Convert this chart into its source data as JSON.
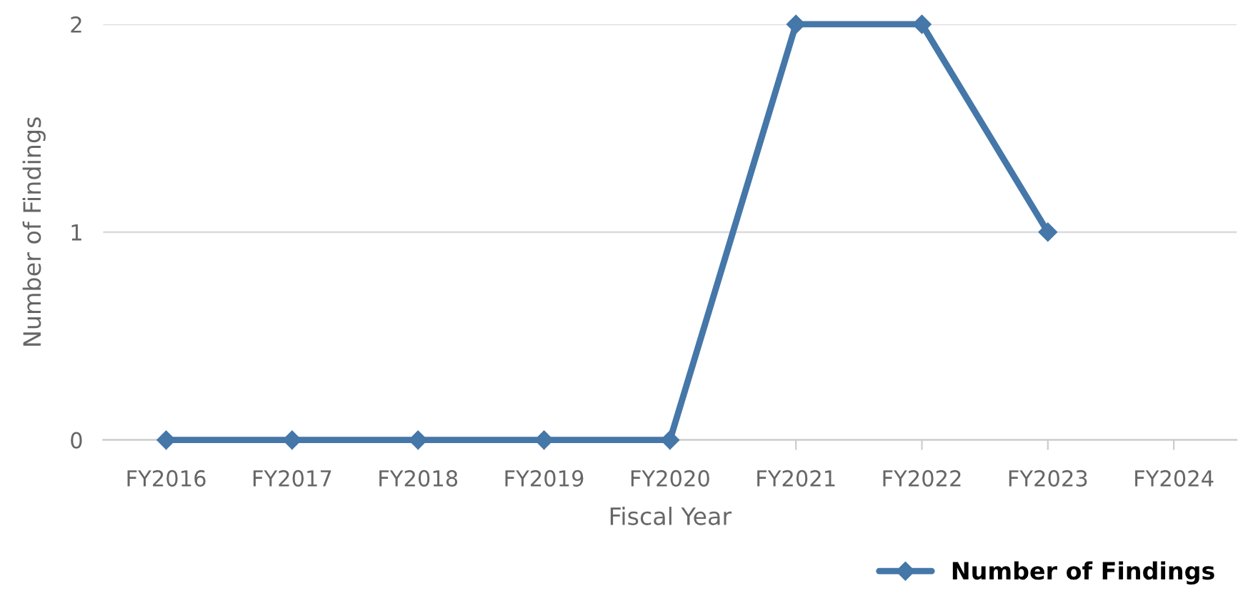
{
  "chart_data": {
    "type": "line",
    "xlabel": "Fiscal Year",
    "ylabel": "Number of Findings",
    "categories": [
      "FY2016",
      "FY2017",
      "FY2018",
      "FY2019",
      "FY2020",
      "FY2021",
      "FY2022",
      "FY2023",
      "FY2024"
    ],
    "series": [
      {
        "name": "Number of Findings",
        "color": "#4577a9",
        "values": [
          0,
          0,
          0,
          0,
          0,
          2,
          2,
          1,
          null
        ]
      }
    ],
    "ylim": [
      0,
      2
    ],
    "yticks": [
      0,
      1,
      2
    ],
    "grid": "y",
    "legend": "bottom right",
    "marker": "diamond",
    "line_style": "solid"
  }
}
